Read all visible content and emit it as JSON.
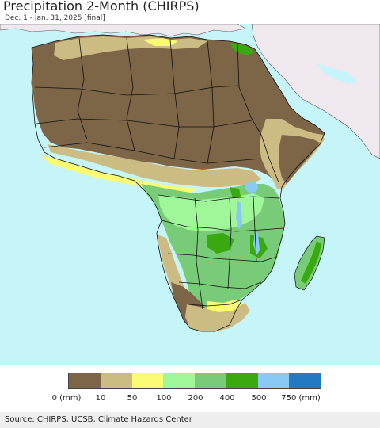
{
  "header": {
    "title": "Precipitation 2-Month (CHIRPS)",
    "subtitle": "Dec. 1 - Jan. 31, 2025 [final]"
  },
  "legend": {
    "colors": [
      "#7d6547",
      "#ccbb82",
      "#fbfb73",
      "#9ff79a",
      "#79cc77",
      "#3aa90f",
      "#88c9f6",
      "#237ac2"
    ],
    "labels": [
      "0 (mm)",
      "10",
      "50",
      "100",
      "200",
      "400",
      "500",
      "750 (mm)"
    ]
  },
  "map": {
    "ocean_color": "#c5f5f9",
    "outside_land_color": "#efe9ef",
    "border_color": "#111111"
  },
  "footer": {
    "source": "Source: CHIRPS, UCSB, Climate Hazards Center"
  }
}
